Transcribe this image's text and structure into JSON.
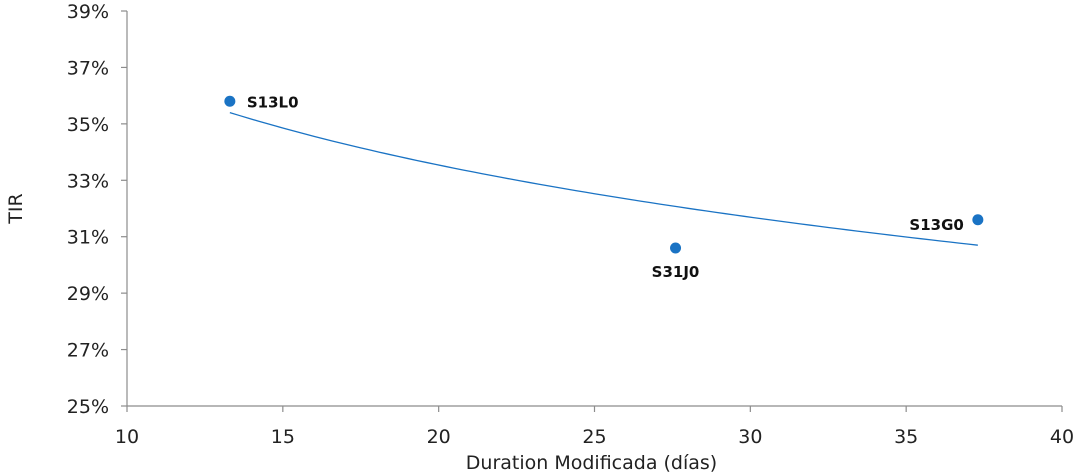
{
  "chart_data": {
    "type": "scatter",
    "xlabel": "Duration  Modificada (días)",
    "ylabel": "TIR",
    "xlim": [
      10,
      40
    ],
    "ylim": [
      25,
      39
    ],
    "x_ticks": [
      10,
      15,
      20,
      25,
      30,
      35,
      40
    ],
    "x_tick_labels": [
      "10",
      "15",
      "20",
      "25",
      "30",
      "35",
      "40"
    ],
    "y_ticks": [
      25,
      27,
      29,
      31,
      33,
      35,
      37,
      39
    ],
    "y_tick_labels": [
      "25%",
      "27%",
      "29%",
      "31%",
      "33%",
      "35%",
      "37%",
      "39%"
    ],
    "grid": false,
    "series": [
      {
        "points": [
          {
            "label": "S13L0",
            "x": 13.3,
            "y": 35.8
          },
          {
            "label": "S31J0",
            "x": 27.6,
            "y": 30.6
          },
          {
            "label": "S13G0",
            "x": 37.3,
            "y": 31.6
          }
        ]
      }
    ],
    "trendline": {
      "type": "logarithmic",
      "x_range": [
        13.3,
        37.3
      ],
      "y_at_start": 35.4,
      "y_at_end": 30.7
    },
    "colors": {
      "marker": "#1a73c4",
      "trendline": "#1a73c4",
      "axis": "#8c8c8c"
    }
  }
}
